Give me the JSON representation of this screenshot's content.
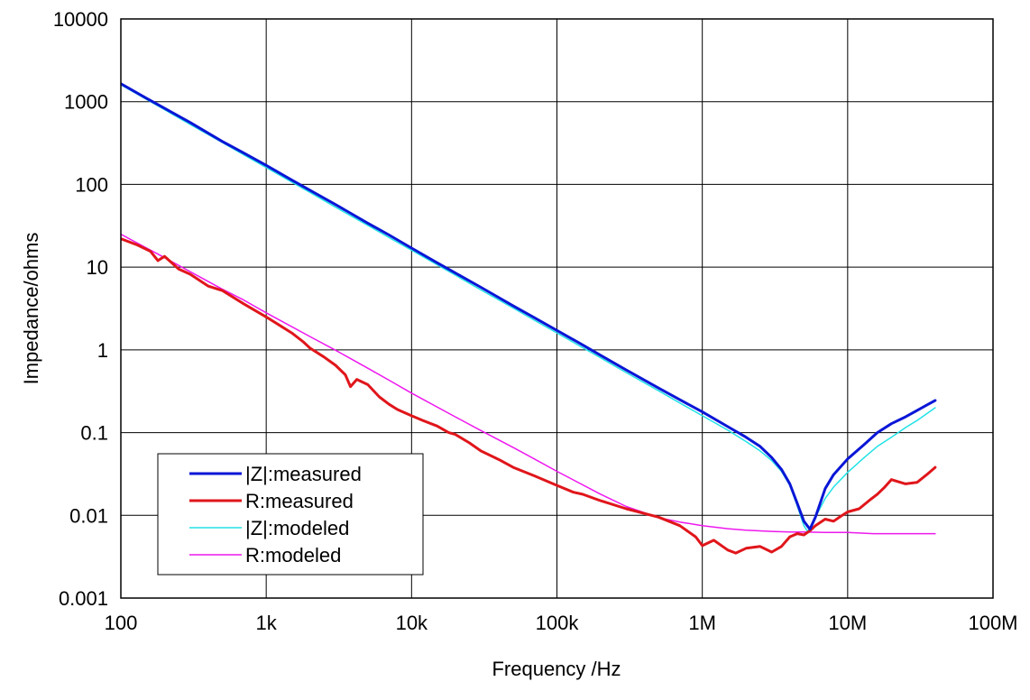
{
  "chart_data": {
    "type": "line",
    "xlabel": "Frequency /Hz",
    "ylabel": "Impedance/ohms",
    "xscale": "log",
    "yscale": "log",
    "xlim": [
      100,
      100000000
    ],
    "ylim": [
      0.001,
      10000
    ],
    "grid": true,
    "legend_position": "bottom-left",
    "x_ticks": [
      {
        "value": 100,
        "label": "100"
      },
      {
        "value": 1000,
        "label": "1k"
      },
      {
        "value": 10000,
        "label": "10k"
      },
      {
        "value": 100000,
        "label": "100k"
      },
      {
        "value": 1000000,
        "label": "1M"
      },
      {
        "value": 10000000,
        "label": "10M"
      },
      {
        "value": 100000000,
        "label": "100M"
      }
    ],
    "y_ticks": [
      {
        "value": 0.001,
        "label": "0.001"
      },
      {
        "value": 0.01,
        "label": "0.01"
      },
      {
        "value": 0.1,
        "label": "0.1"
      },
      {
        "value": 1,
        "label": "1"
      },
      {
        "value": 10,
        "label": "10"
      },
      {
        "value": 100,
        "label": "100"
      },
      {
        "value": 1000,
        "label": "1000"
      },
      {
        "value": 10000,
        "label": "10000"
      }
    ],
    "series": [
      {
        "name": "|Z|:measured",
        "color": "#0a16d6",
        "width": 3,
        "x": [
          100,
          150,
          200,
          300,
          500,
          700,
          1000,
          1500,
          2000,
          3000,
          5000,
          7000,
          10000,
          15000,
          20000,
          30000,
          50000,
          70000,
          100000,
          150000,
          200000,
          300000,
          500000,
          700000,
          1000000,
          1500000,
          2000000,
          2500000,
          3000000,
          3500000,
          4000000,
          4500000,
          5000000,
          5500000,
          6000000,
          7000000,
          8000000,
          10000000,
          13000000,
          16000000,
          20000000,
          25000000,
          30000000,
          35000000,
          40000000
        ],
        "y": [
          1650,
          1100,
          830,
          560,
          330,
          240,
          170,
          113,
          85,
          57,
          34,
          24.5,
          17,
          11.3,
          8.5,
          5.7,
          3.4,
          2.45,
          1.72,
          1.15,
          0.86,
          0.57,
          0.345,
          0.25,
          0.178,
          0.118,
          0.088,
          0.068,
          0.05,
          0.036,
          0.024,
          0.014,
          0.0085,
          0.0068,
          0.0095,
          0.021,
          0.031,
          0.048,
          0.072,
          0.1,
          0.128,
          0.155,
          0.185,
          0.215,
          0.245
        ]
      },
      {
        "name": "R:measured",
        "color": "#e0161b",
        "width": 3,
        "x": [
          100,
          130,
          160,
          180,
          200,
          250,
          300,
          400,
          500,
          700,
          1000,
          1200,
          1500,
          1800,
          2000,
          2500,
          3000,
          3500,
          3800,
          4200,
          5000,
          6000,
          7000,
          8000,
          10000,
          12000,
          15000,
          18000,
          20000,
          25000,
          30000,
          40000,
          50000,
          70000,
          100000,
          130000,
          150000,
          200000,
          300000,
          500000,
          700000,
          900000,
          1000000,
          1200000,
          1500000,
          1700000,
          2000000,
          2500000,
          3000000,
          3500000,
          4000000,
          4500000,
          5000000,
          5500000,
          6000000,
          7000000,
          8000000,
          9000000,
          10000000,
          12000000,
          14000000,
          16000000,
          18000000,
          20000000,
          25000000,
          30000000,
          35000000,
          40000000
        ],
        "y": [
          22,
          18.5,
          15.5,
          12,
          13.5,
          9.5,
          8.2,
          5.9,
          5.2,
          3.6,
          2.5,
          2.05,
          1.6,
          1.25,
          1.05,
          0.82,
          0.65,
          0.5,
          0.36,
          0.44,
          0.38,
          0.27,
          0.22,
          0.19,
          0.16,
          0.14,
          0.12,
          0.1,
          0.095,
          0.075,
          0.06,
          0.047,
          0.038,
          0.03,
          0.023,
          0.019,
          0.018,
          0.015,
          0.012,
          0.0095,
          0.0075,
          0.0055,
          0.0043,
          0.005,
          0.0038,
          0.0035,
          0.004,
          0.0042,
          0.0036,
          0.0042,
          0.0055,
          0.006,
          0.0058,
          0.0065,
          0.0075,
          0.009,
          0.0085,
          0.0098,
          0.011,
          0.012,
          0.015,
          0.018,
          0.022,
          0.027,
          0.024,
          0.025,
          0.031,
          0.038
        ]
      },
      {
        "name": "|Z|:modeled",
        "color": "#22e2e6",
        "width": 1.5,
        "x": [
          100,
          200,
          300,
          500,
          700,
          1000,
          2000,
          3000,
          5000,
          7000,
          10000,
          20000,
          30000,
          50000,
          70000,
          100000,
          200000,
          300000,
          500000,
          700000,
          1000000,
          1500000,
          2000000,
          2500000,
          3000000,
          3500000,
          4000000,
          4500000,
          5000000,
          5300000,
          5600000,
          6000000,
          7000000,
          8000000,
          10000000,
          13000000,
          16000000,
          20000000,
          25000000,
          30000000,
          40000000
        ],
        "y": [
          1600,
          800,
          530,
          320,
          228,
          160,
          80,
          53,
          32,
          22.8,
          16,
          8,
          5.3,
          3.2,
          2.28,
          1.6,
          0.8,
          0.53,
          0.32,
          0.228,
          0.16,
          0.107,
          0.078,
          0.06,
          0.046,
          0.034,
          0.023,
          0.013,
          0.0075,
          0.0064,
          0.0072,
          0.0095,
          0.016,
          0.022,
          0.033,
          0.05,
          0.068,
          0.088,
          0.115,
          0.14,
          0.2
        ]
      },
      {
        "name": "R:modeled",
        "color": "#ee18ee",
        "width": 1.5,
        "x": [
          100,
          200,
          300,
          500,
          700,
          1000,
          2000,
          3000,
          5000,
          7000,
          10000,
          20000,
          30000,
          50000,
          70000,
          100000,
          200000,
          300000,
          500000,
          700000,
          1000000,
          1500000,
          2000000,
          3000000,
          4000000,
          5000000,
          7000000,
          10000000,
          15000000,
          20000000,
          30000000,
          40000000
        ],
        "y": [
          25,
          13,
          8.8,
          5.4,
          4,
          2.8,
          1.45,
          0.99,
          0.6,
          0.43,
          0.3,
          0.155,
          0.106,
          0.066,
          0.048,
          0.034,
          0.018,
          0.0128,
          0.0094,
          0.0083,
          0.0075,
          0.0069,
          0.0066,
          0.0064,
          0.0063,
          0.0063,
          0.0062,
          0.0062,
          0.006,
          0.006,
          0.006,
          0.006
        ]
      }
    ]
  }
}
